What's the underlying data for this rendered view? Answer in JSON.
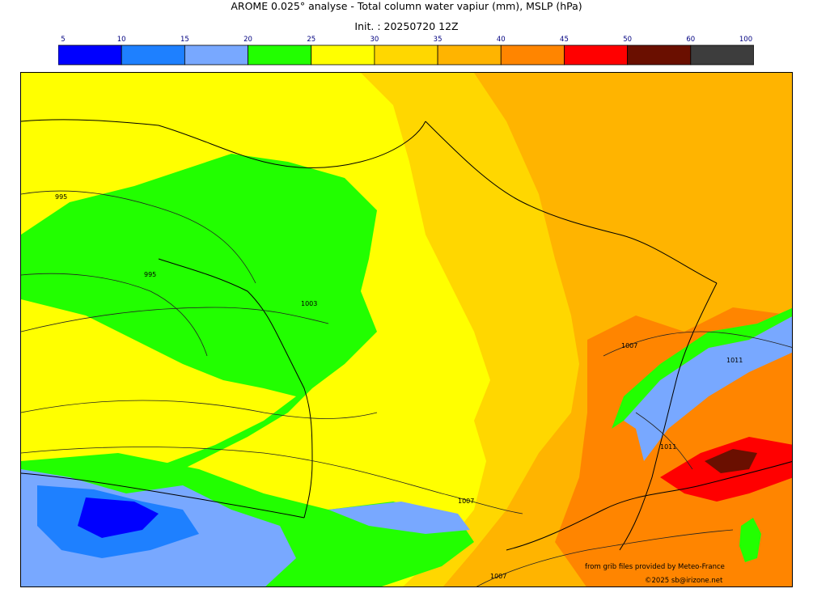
{
  "header": {
    "title": "AROME 0.025° analyse - Total column water vapiur (mm), MSLP (hPa)",
    "subtitle": "Init. : 20250720 12Z"
  },
  "colorbar": {
    "ticks": [
      "5",
      "10",
      "15",
      "20",
      "25",
      "30",
      "35",
      "40",
      "45",
      "50",
      "60",
      "100"
    ],
    "colors": [
      "#0000ff",
      "#1e80ff",
      "#78a8ff",
      "#22ff00",
      "#ffff00",
      "#ffd700",
      "#ffb400",
      "#ff8500",
      "#ff0000",
      "#6a0f00",
      "#3d3d3d"
    ]
  },
  "map": {
    "isobar_labels": [
      "995",
      "995",
      "1003",
      "1007",
      "1011",
      "1011",
      "1007",
      "1007"
    ]
  },
  "footer": {
    "credit_grib": "from grib files provided by Meteo-France",
    "credit_copyright": "©2025 sb@irizone.net"
  }
}
